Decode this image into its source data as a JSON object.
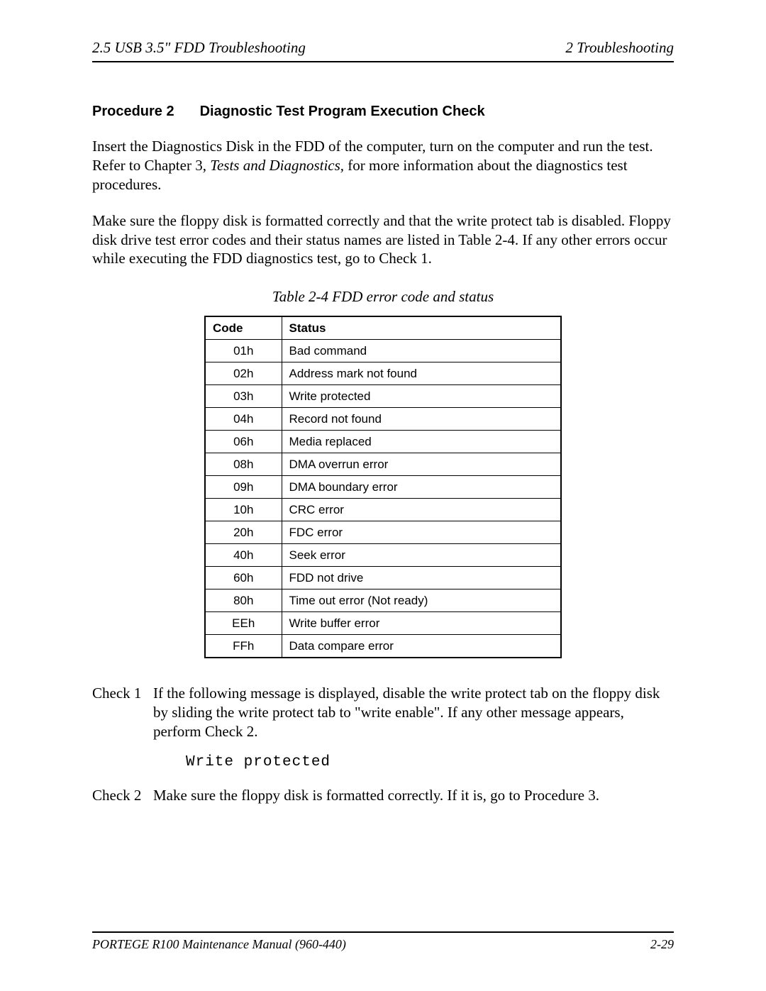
{
  "header": {
    "left": "2.5  USB 3.5\" FDD Troubleshooting",
    "right": "2  Troubleshooting"
  },
  "heading": {
    "procedure_label": "Procedure 2",
    "title": "Diagnostic Test Program Execution Check"
  },
  "paragraphs": {
    "p1a": "Insert the Diagnostics Disk in the FDD of the computer, turn on the computer and run the test. Refer to Chapter 3, ",
    "p1_ital": "Tests and Diagnostics,",
    "p1b": " for more information about the diagnostics test procedures.",
    "p2": "Make sure the floppy disk is formatted correctly and that the write protect tab is disabled. Floppy disk drive test error codes and their status names are listed in Table 2-4. If any other errors occur while executing the FDD diagnostics test, go to Check 1."
  },
  "table": {
    "caption": "Table 2-4  FDD error code and status",
    "columns": [
      "Code",
      "Status"
    ],
    "rows": [
      [
        "01h",
        "Bad command"
      ],
      [
        "02h",
        "Address mark not found"
      ],
      [
        "03h",
        "Write protected"
      ],
      [
        "04h",
        "Record not found"
      ],
      [
        "06h",
        "Media replaced"
      ],
      [
        "08h",
        "DMA overrun error"
      ],
      [
        "09h",
        "DMA boundary error"
      ],
      [
        "10h",
        "CRC error"
      ],
      [
        "20h",
        "FDC error"
      ],
      [
        "40h",
        "Seek error"
      ],
      [
        "60h",
        "FDD not drive"
      ],
      [
        "80h",
        "Time out error (Not ready)"
      ],
      [
        "EEh",
        "Write buffer error"
      ],
      [
        "FFh",
        "Data compare error"
      ]
    ]
  },
  "checks": {
    "c1_label": "Check 1",
    "c1_text": "If the following message is displayed, disable the write protect tab on the floppy disk by sliding the write protect tab to \"write enable\". If any other message appears, perform Check 2.",
    "c1_mono": "Write protected",
    "c2_label": "Check 2",
    "c2_text": "Make sure the floppy disk is formatted correctly. If it is, go to Procedure 3."
  },
  "footer": {
    "left": "PORTEGE R100 Maintenance Manual (960-440)",
    "right": "2-29"
  }
}
